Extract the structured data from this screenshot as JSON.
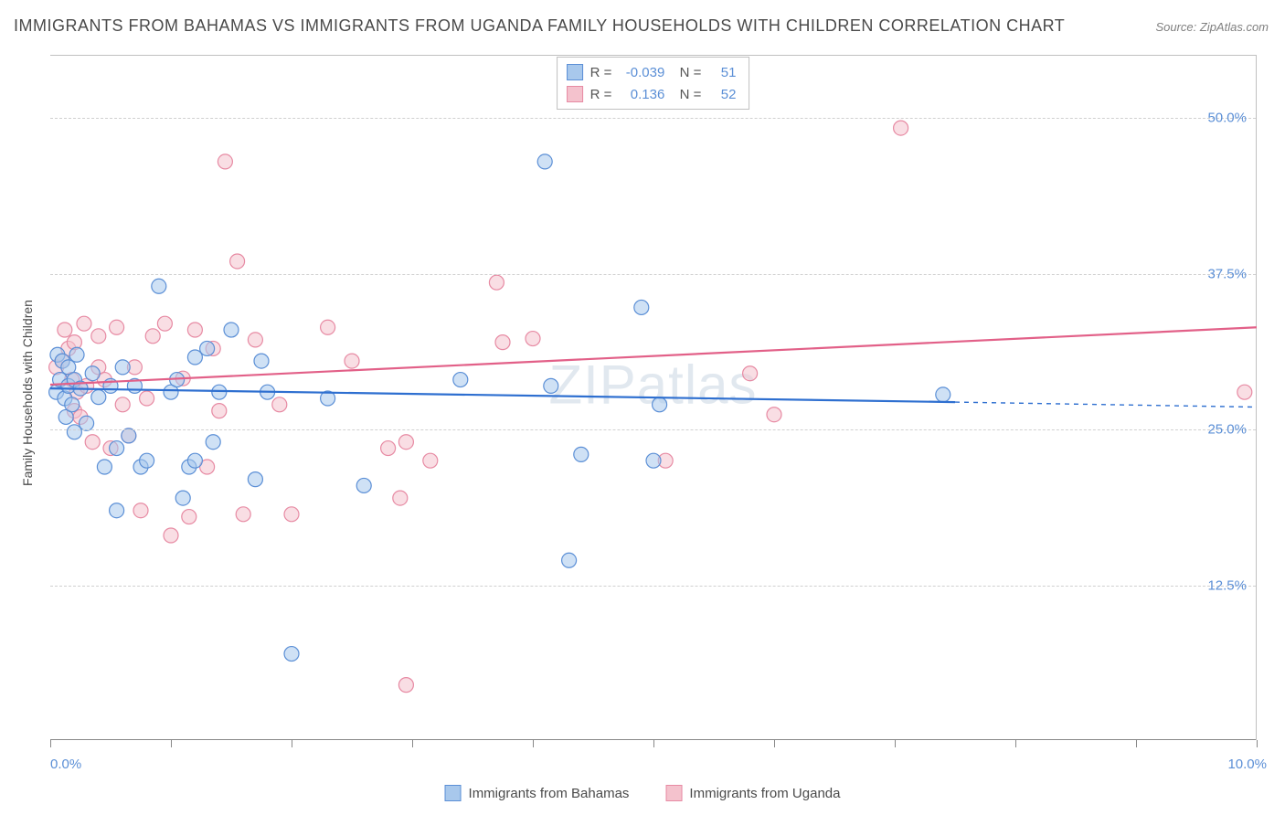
{
  "title": "IMMIGRANTS FROM BAHAMAS VS IMMIGRANTS FROM UGANDA FAMILY HOUSEHOLDS WITH CHILDREN CORRELATION CHART",
  "source": "Source: ZipAtlas.com",
  "watermark": "ZIPatlas",
  "y_axis_label": "Family Households with Children",
  "chart": {
    "type": "scatter",
    "background_color": "#ffffff",
    "grid_color": "#d0d0d0",
    "border_color": "#c0c0c0",
    "xlim": [
      0,
      10
    ],
    "ylim": [
      0,
      55
    ],
    "x_tick_positions": [
      0,
      1,
      2,
      3,
      4,
      5,
      6,
      7,
      8,
      9,
      10
    ],
    "x_tick_labels_shown": {
      "0": "0.0%",
      "10": "10.0%"
    },
    "y_tick_positions": [
      12.5,
      25.0,
      37.5,
      50.0
    ],
    "y_tick_labels": [
      "12.5%",
      "25.0%",
      "37.5%",
      "50.0%"
    ],
    "tick_label_color": "#5b8fd6",
    "tick_label_fontsize": 15,
    "marker_radius": 8,
    "marker_opacity": 0.55,
    "line_width": 2.2,
    "series": [
      {
        "name": "Immigrants from Bahamas",
        "color_fill": "#a8c8ec",
        "color_stroke": "#5b8fd6",
        "line_color": "#2e6fd0",
        "R": "-0.039",
        "N": "51",
        "trend": {
          "x1": 0,
          "y1": 28.3,
          "x2": 7.5,
          "y2": 27.2,
          "x2_dash": 10.0,
          "y2_dash": 26.8
        },
        "points": [
          [
            0.05,
            28
          ],
          [
            0.06,
            31
          ],
          [
            0.08,
            29
          ],
          [
            0.1,
            30.5
          ],
          [
            0.12,
            27.5
          ],
          [
            0.13,
            26
          ],
          [
            0.15,
            30
          ],
          [
            0.15,
            28.5
          ],
          [
            0.18,
            27
          ],
          [
            0.2,
            29
          ],
          [
            0.2,
            24.8
          ],
          [
            0.22,
            31
          ],
          [
            0.25,
            28.3
          ],
          [
            0.3,
            25.5
          ],
          [
            0.35,
            29.5
          ],
          [
            0.4,
            27.6
          ],
          [
            0.45,
            22
          ],
          [
            0.5,
            28.5
          ],
          [
            0.55,
            23.5
          ],
          [
            0.55,
            18.5
          ],
          [
            0.6,
            30
          ],
          [
            0.65,
            24.5
          ],
          [
            0.7,
            28.5
          ],
          [
            0.75,
            22
          ],
          [
            0.8,
            22.5
          ],
          [
            0.9,
            36.5
          ],
          [
            1.0,
            28
          ],
          [
            1.05,
            29
          ],
          [
            1.1,
            19.5
          ],
          [
            1.15,
            22
          ],
          [
            1.2,
            22.5
          ],
          [
            1.2,
            30.8
          ],
          [
            1.3,
            31.5
          ],
          [
            1.35,
            24
          ],
          [
            1.4,
            28
          ],
          [
            1.5,
            33
          ],
          [
            1.7,
            21
          ],
          [
            1.75,
            30.5
          ],
          [
            1.8,
            28
          ],
          [
            2.0,
            7.0
          ],
          [
            2.3,
            27.5
          ],
          [
            2.6,
            20.5
          ],
          [
            3.4,
            29.0
          ],
          [
            4.1,
            46.5
          ],
          [
            4.15,
            28.5
          ],
          [
            4.3,
            14.5
          ],
          [
            4.4,
            23
          ],
          [
            4.9,
            34.8
          ],
          [
            5.0,
            22.5
          ],
          [
            5.05,
            27
          ],
          [
            7.4,
            27.8
          ]
        ]
      },
      {
        "name": "Immigrants from Uganda",
        "color_fill": "#f4c2cd",
        "color_stroke": "#e78aa3",
        "line_color": "#e26088",
        "R": "0.136",
        "N": "52",
        "trend": {
          "x1": 0,
          "y1": 28.6,
          "x2": 10.0,
          "y2": 33.2
        },
        "points": [
          [
            0.05,
            30
          ],
          [
            0.1,
            30.5
          ],
          [
            0.12,
            33
          ],
          [
            0.15,
            31.5
          ],
          [
            0.18,
            29
          ],
          [
            0.2,
            26.5
          ],
          [
            0.2,
            32
          ],
          [
            0.22,
            28
          ],
          [
            0.25,
            26
          ],
          [
            0.28,
            33.5
          ],
          [
            0.3,
            28.5
          ],
          [
            0.35,
            24
          ],
          [
            0.4,
            30
          ],
          [
            0.4,
            32.5
          ],
          [
            0.45,
            29
          ],
          [
            0.5,
            23.5
          ],
          [
            0.55,
            33.2
          ],
          [
            0.6,
            27
          ],
          [
            0.65,
            24.5
          ],
          [
            0.7,
            30
          ],
          [
            0.75,
            18.5
          ],
          [
            0.8,
            27.5
          ],
          [
            0.85,
            32.5
          ],
          [
            0.95,
            33.5
          ],
          [
            1.0,
            16.5
          ],
          [
            1.1,
            29.1
          ],
          [
            1.15,
            18
          ],
          [
            1.2,
            33.0
          ],
          [
            1.3,
            22
          ],
          [
            1.35,
            31.5
          ],
          [
            1.4,
            26.5
          ],
          [
            1.45,
            46.5
          ],
          [
            1.55,
            38.5
          ],
          [
            1.6,
            18.2
          ],
          [
            1.7,
            32.2
          ],
          [
            1.9,
            27
          ],
          [
            2.0,
            18.2
          ],
          [
            2.3,
            33.2
          ],
          [
            2.5,
            30.5
          ],
          [
            2.8,
            23.5
          ],
          [
            2.9,
            19.5
          ],
          [
            2.95,
            24
          ],
          [
            2.95,
            4.5
          ],
          [
            3.15,
            22.5
          ],
          [
            3.7,
            36.8
          ],
          [
            3.75,
            32
          ],
          [
            4.0,
            32.3
          ],
          [
            5.1,
            22.5
          ],
          [
            5.8,
            29.5
          ],
          [
            6.0,
            26.2
          ],
          [
            7.05,
            49.2
          ],
          [
            9.9,
            28.0
          ]
        ]
      }
    ]
  },
  "bottom_legend": [
    {
      "label": "Immigrants from Bahamas",
      "fill": "#a8c8ec",
      "stroke": "#5b8fd6"
    },
    {
      "label": "Immigrants from Uganda",
      "fill": "#f4c2cd",
      "stroke": "#e78aa3"
    }
  ]
}
